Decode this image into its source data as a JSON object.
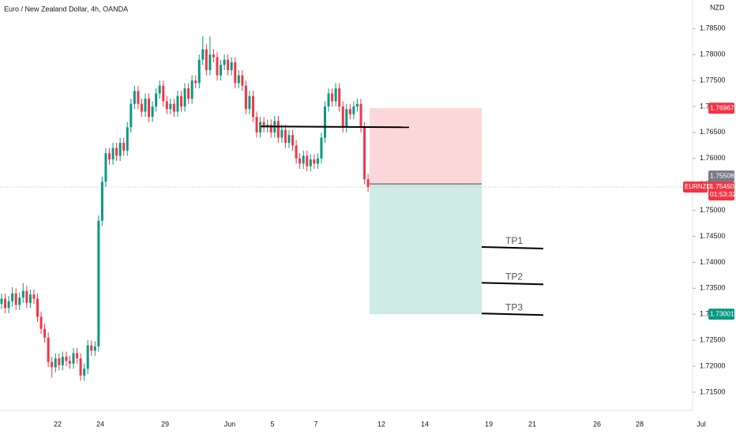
{
  "chart_data": {
    "type": "candlestick",
    "title": "Euro / New Zealand Dollar, 4h, OANDA",
    "currency": "NZD",
    "up_color": "#089981",
    "down_color": "#f23645",
    "ylim": [
      1.7115,
      1.7905
    ],
    "yticks": [
      {
        "value": 1.785,
        "label": "1.78500"
      },
      {
        "value": 1.78,
        "label": "1.78000"
      },
      {
        "value": 1.775,
        "label": "1.77500"
      },
      {
        "value": 1.77,
        "label": "1.77000"
      },
      {
        "value": 1.765,
        "label": "1.76500"
      },
      {
        "value": 1.76,
        "label": "1.76000"
      },
      {
        "value": 1.755,
        "label": "1.75500"
      },
      {
        "value": 1.75,
        "label": "1.75000"
      },
      {
        "value": 1.745,
        "label": "1.74500"
      },
      {
        "value": 1.74,
        "label": "1.74000"
      },
      {
        "value": 1.735,
        "label": "1.73500"
      },
      {
        "value": 1.73,
        "label": "1.73000"
      },
      {
        "value": 1.725,
        "label": "1.72500"
      },
      {
        "value": 1.72,
        "label": "1.72000"
      },
      {
        "value": 1.715,
        "label": "1.71500"
      }
    ],
    "xticks": [
      "22",
      "24",
      "29",
      "Jun",
      "5",
      "7",
      "12",
      "14",
      "19",
      "21",
      "26",
      "28",
      "Jul"
    ],
    "ohlc": [
      [
        1.732,
        1.734,
        1.731,
        1.733
      ],
      [
        1.733,
        1.734,
        1.7302,
        1.7312
      ],
      [
        1.7312,
        1.7335,
        1.7302,
        1.7325
      ],
      [
        1.7325,
        1.7352,
        1.7315,
        1.734
      ],
      [
        1.734,
        1.735,
        1.7308,
        1.7318
      ],
      [
        1.7318,
        1.7342,
        1.7308,
        1.7332
      ],
      [
        1.7332,
        1.736,
        1.7322,
        1.7345
      ],
      [
        1.7345,
        1.7355,
        1.7312,
        1.7322
      ],
      [
        1.7322,
        1.7348,
        1.7312,
        1.7338
      ],
      [
        1.7338,
        1.7348,
        1.732,
        1.733
      ],
      [
        1.733,
        1.734,
        1.7285,
        1.7295
      ],
      [
        1.7295,
        1.7305,
        1.7262,
        1.7272
      ],
      [
        1.7272,
        1.7282,
        1.7245,
        1.7255
      ],
      [
        1.7255,
        1.7265,
        1.7198,
        1.7208
      ],
      [
        1.7208,
        1.7218,
        1.7178,
        1.7198
      ],
      [
        1.7198,
        1.7225,
        1.7188,
        1.7215
      ],
      [
        1.7215,
        1.7225,
        1.7192,
        1.7202
      ],
      [
        1.7202,
        1.7228,
        1.7192,
        1.7218
      ],
      [
        1.7218,
        1.7228,
        1.72,
        1.721
      ],
      [
        1.721,
        1.722,
        1.7195,
        1.7205
      ],
      [
        1.7205,
        1.7235,
        1.7195,
        1.7225
      ],
      [
        1.7225,
        1.7235,
        1.7205,
        1.7215
      ],
      [
        1.7215,
        1.7225,
        1.7172,
        1.7182
      ],
      [
        1.7182,
        1.7205,
        1.7172,
        1.7195
      ],
      [
        1.7195,
        1.725,
        1.7185,
        1.724
      ],
      [
        1.724,
        1.725,
        1.722,
        1.723
      ],
      [
        1.723,
        1.7248,
        1.722,
        1.7238
      ],
      [
        1.7238,
        1.749,
        1.7228,
        1.748
      ],
      [
        1.748,
        1.7565,
        1.747,
        1.7555
      ],
      [
        1.7555,
        1.762,
        1.7545,
        1.761
      ],
      [
        1.761,
        1.762,
        1.7588,
        1.7598
      ],
      [
        1.7598,
        1.763,
        1.7588,
        1.762
      ],
      [
        1.762,
        1.763,
        1.7595,
        1.7605
      ],
      [
        1.7605,
        1.764,
        1.7595,
        1.763
      ],
      [
        1.763,
        1.764,
        1.7605,
        1.7615
      ],
      [
        1.7615,
        1.767,
        1.7605,
        1.766
      ],
      [
        1.766,
        1.7715,
        1.765,
        1.7705
      ],
      [
        1.7705,
        1.774,
        1.7695,
        1.773
      ],
      [
        1.773,
        1.774,
        1.7695,
        1.7705
      ],
      [
        1.7705,
        1.7715,
        1.768,
        1.769
      ],
      [
        1.769,
        1.7725,
        1.768,
        1.7715
      ],
      [
        1.7715,
        1.7725,
        1.767,
        1.768
      ],
      [
        1.768,
        1.771,
        1.767,
        1.77
      ],
      [
        1.77,
        1.7735,
        1.769,
        1.7725
      ],
      [
        1.7725,
        1.775,
        1.7715,
        1.774
      ],
      [
        1.774,
        1.775,
        1.77,
        1.771
      ],
      [
        1.771,
        1.772,
        1.7685,
        1.7695
      ],
      [
        1.7695,
        1.7715,
        1.7685,
        1.7705
      ],
      [
        1.7705,
        1.7715,
        1.768,
        1.769
      ],
      [
        1.769,
        1.773,
        1.768,
        1.772
      ],
      [
        1.772,
        1.773,
        1.769,
        1.77
      ],
      [
        1.77,
        1.7745,
        1.769,
        1.7735
      ],
      [
        1.7735,
        1.7745,
        1.7705,
        1.7715
      ],
      [
        1.7715,
        1.776,
        1.7705,
        1.775
      ],
      [
        1.775,
        1.776,
        1.7735,
        1.7745
      ],
      [
        1.7745,
        1.78,
        1.7735,
        1.779
      ],
      [
        1.779,
        1.7835,
        1.778,
        1.781
      ],
      [
        1.781,
        1.782,
        1.776,
        1.777
      ],
      [
        1.777,
        1.7835,
        1.776,
        1.78
      ],
      [
        1.78,
        1.781,
        1.7785,
        1.7795
      ],
      [
        1.7795,
        1.7805,
        1.775,
        1.776
      ],
      [
        1.776,
        1.779,
        1.775,
        1.778
      ],
      [
        1.778,
        1.78,
        1.777,
        1.779
      ],
      [
        1.779,
        1.78,
        1.776,
        1.777
      ],
      [
        1.777,
        1.7795,
        1.776,
        1.7785
      ],
      [
        1.7785,
        1.7795,
        1.7735,
        1.7745
      ],
      [
        1.7745,
        1.777,
        1.7735,
        1.776
      ],
      [
        1.776,
        1.777,
        1.773,
        1.774
      ],
      [
        1.774,
        1.775,
        1.7685,
        1.7695
      ],
      [
        1.7695,
        1.773,
        1.7685,
        1.772
      ],
      [
        1.772,
        1.773,
        1.767,
        1.768
      ],
      [
        1.768,
        1.769,
        1.764,
        1.765
      ],
      [
        1.765,
        1.768,
        1.764,
        1.767
      ],
      [
        1.767,
        1.768,
        1.765,
        1.766
      ],
      [
        1.766,
        1.7675,
        1.765,
        1.7665
      ],
      [
        1.7665,
        1.7675,
        1.764,
        1.765
      ],
      [
        1.765,
        1.7682,
        1.764,
        1.7672
      ],
      [
        1.7672,
        1.7682,
        1.763,
        1.764
      ],
      [
        1.764,
        1.7665,
        1.763,
        1.7655
      ],
      [
        1.7655,
        1.7665,
        1.762,
        1.763
      ],
      [
        1.763,
        1.7655,
        1.762,
        1.7645
      ],
      [
        1.7645,
        1.7655,
        1.7615,
        1.7625
      ],
      [
        1.7625,
        1.7635,
        1.759,
        1.76
      ],
      [
        1.76,
        1.761,
        1.758,
        1.759
      ],
      [
        1.759,
        1.7615,
        1.758,
        1.7605
      ],
      [
        1.7605,
        1.7615,
        1.7575,
        1.7585
      ],
      [
        1.7585,
        1.7608,
        1.7575,
        1.7598
      ],
      [
        1.7598,
        1.7608,
        1.758,
        1.759
      ],
      [
        1.759,
        1.761,
        1.758,
        1.76
      ],
      [
        1.76,
        1.765,
        1.759,
        1.764
      ],
      [
        1.764,
        1.771,
        1.763,
        1.77
      ],
      [
        1.77,
        1.7735,
        1.769,
        1.7725
      ],
      [
        1.7725,
        1.7735,
        1.77,
        1.771
      ],
      [
        1.771,
        1.7745,
        1.77,
        1.7735
      ],
      [
        1.7735,
        1.7745,
        1.769,
        1.77
      ],
      [
        1.77,
        1.771,
        1.765,
        1.766
      ],
      [
        1.766,
        1.7705,
        1.765,
        1.7695
      ],
      [
        1.7695,
        1.7705,
        1.7675,
        1.7685
      ],
      [
        1.7685,
        1.771,
        1.7675,
        1.77
      ],
      [
        1.77,
        1.7715,
        1.769,
        1.7705
      ],
      [
        1.7705,
        1.7715,
        1.765,
        1.766
      ],
      [
        1.766,
        1.767,
        1.755,
        1.756
      ],
      [
        1.756,
        1.757,
        1.7535,
        1.7545
      ]
    ],
    "level": 1.766,
    "position": {
      "stop": 1.76967,
      "entry": 1.75508,
      "target": 1.73001
    },
    "targets": [
      {
        "label": "TP1",
        "price": 1.7428
      },
      {
        "label": "TP2",
        "price": 1.7359
      },
      {
        "label": "TP3",
        "price": 1.73
      }
    ],
    "symbol": "EURNZD",
    "last_price": {
      "value": 1.7545,
      "label": "1.75450"
    },
    "countdown": "01:53:32"
  }
}
